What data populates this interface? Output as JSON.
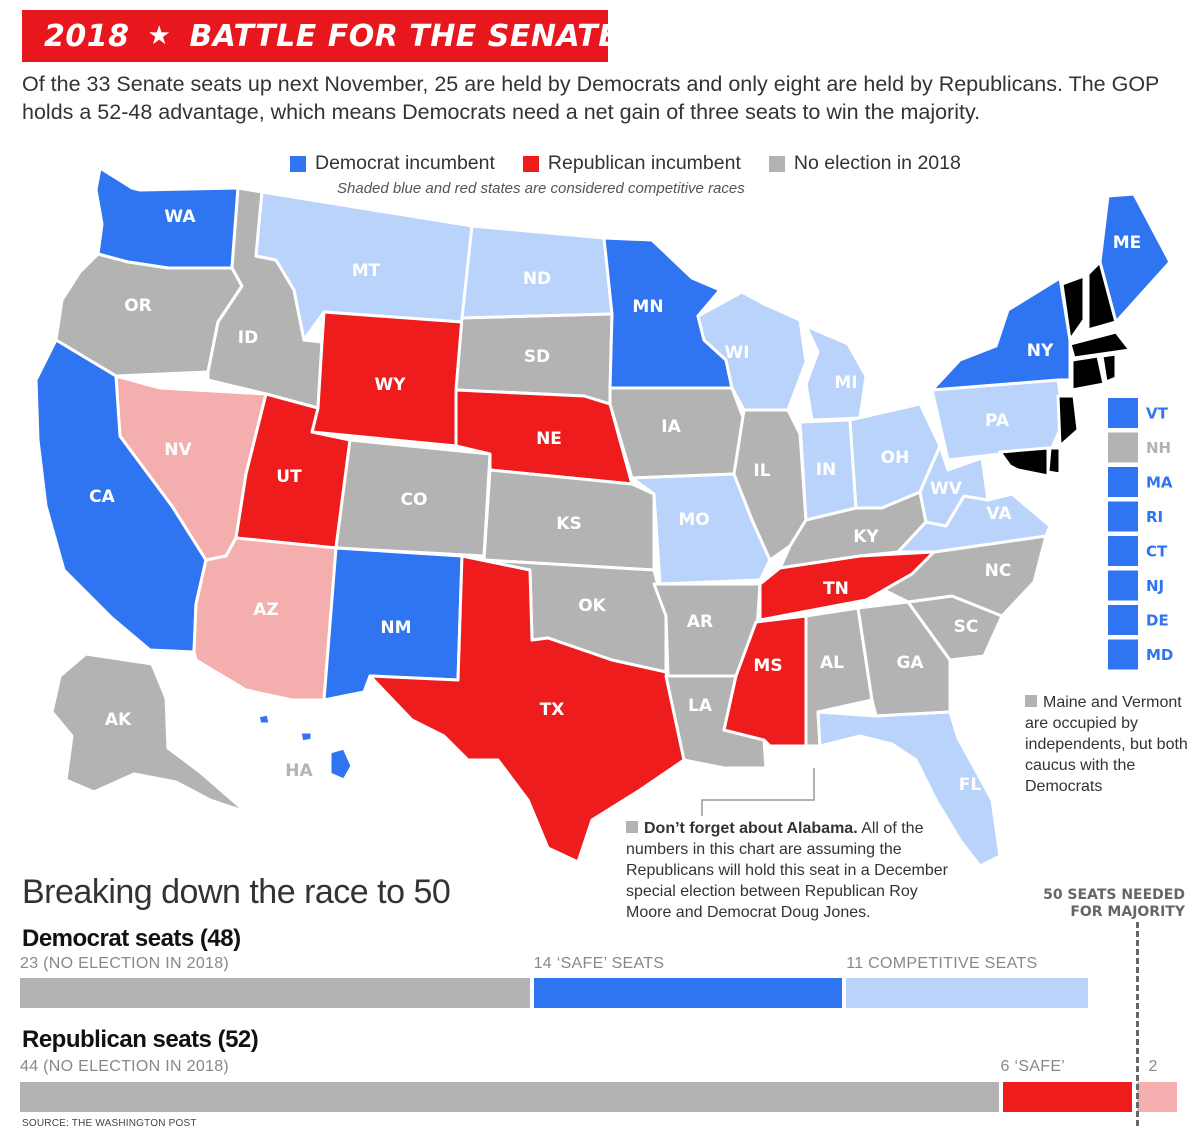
{
  "header": {
    "year": "2018",
    "star": "★",
    "title": "BATTLE FOR THE SENATE",
    "intro": "Of the 33 Senate seats up next November, 25 are held by Democrats and only eight are held by Republicans. The GOP holds a 52-48 advantage, which means Democrats need a net gain of three seats to win the majority."
  },
  "legend": {
    "items": [
      {
        "label": "Democrat incumbent",
        "color": "#2f74f0"
      },
      {
        "label": "Republican incumbent",
        "color": "#ee1c1c"
      },
      {
        "label": "No election in 2018",
        "color": "#b3b3b3"
      }
    ],
    "note": "Shaded blue and red states are considered competitive races"
  },
  "colors": {
    "dem_safe": "#2f74f0",
    "dem_competitive": "#b9d3fb",
    "rep_safe": "#ee1c1c",
    "rep_competitive": "#f5aeae",
    "no_election": "#b3b3b3",
    "border": "#ffffff"
  },
  "states": {
    "WA": {
      "label": "WA",
      "status": "dem_safe"
    },
    "OR": {
      "label": "OR",
      "status": "no_election"
    },
    "CA": {
      "label": "CA",
      "status": "dem_safe"
    },
    "NV": {
      "label": "NV",
      "status": "rep_competitive"
    },
    "ID": {
      "label": "ID",
      "status": "no_election"
    },
    "MT": {
      "label": "MT",
      "status": "dem_competitive"
    },
    "WY": {
      "label": "WY",
      "status": "rep_safe"
    },
    "UT": {
      "label": "UT",
      "status": "rep_safe"
    },
    "AZ": {
      "label": "AZ",
      "status": "rep_competitive"
    },
    "CO": {
      "label": "CO",
      "status": "no_election"
    },
    "NM": {
      "label": "NM",
      "status": "dem_safe"
    },
    "ND": {
      "label": "ND",
      "status": "dem_competitive"
    },
    "SD": {
      "label": "SD",
      "status": "no_election"
    },
    "NE": {
      "label": "NE",
      "status": "rep_safe"
    },
    "KS": {
      "label": "KS",
      "status": "no_election"
    },
    "OK": {
      "label": "OK",
      "status": "no_election"
    },
    "TX": {
      "label": "TX",
      "status": "rep_safe"
    },
    "MN": {
      "label": "MN",
      "status": "dem_safe"
    },
    "IA": {
      "label": "IA",
      "status": "no_election"
    },
    "MO": {
      "label": "MO",
      "status": "dem_competitive"
    },
    "AR": {
      "label": "AR",
      "status": "no_election"
    },
    "LA": {
      "label": "LA",
      "status": "no_election"
    },
    "WI": {
      "label": "WI",
      "status": "dem_competitive"
    },
    "IL": {
      "label": "IL",
      "status": "no_election"
    },
    "MI": {
      "label": "MI",
      "status": "dem_competitive"
    },
    "IN": {
      "label": "IN",
      "status": "dem_competitive"
    },
    "OH": {
      "label": "OH",
      "status": "dem_competitive"
    },
    "KY": {
      "label": "KY",
      "status": "no_election"
    },
    "TN": {
      "label": "TN",
      "status": "rep_safe"
    },
    "MS": {
      "label": "MS",
      "status": "rep_safe"
    },
    "AL": {
      "label": "AL",
      "status": "no_election"
    },
    "GA": {
      "label": "GA",
      "status": "no_election"
    },
    "FL": {
      "label": "FL",
      "status": "dem_competitive"
    },
    "SC": {
      "label": "SC",
      "status": "no_election"
    },
    "NC": {
      "label": "NC",
      "status": "no_election"
    },
    "VA": {
      "label": "VA",
      "status": "dem_competitive"
    },
    "WV": {
      "label": "WV",
      "status": "dem_competitive"
    },
    "PA": {
      "label": "PA",
      "status": "dem_competitive"
    },
    "NY": {
      "label": "NY",
      "status": "dem_safe"
    },
    "ME": {
      "label": "ME",
      "status": "dem_safe"
    },
    "AK": {
      "label": "AK",
      "status": "no_election"
    },
    "HA": {
      "label": "HA",
      "status": "dem_safe"
    }
  },
  "northeast_list": [
    {
      "label": "VT",
      "status": "dem_safe"
    },
    {
      "label": "NH",
      "status": "no_election"
    },
    {
      "label": "MA",
      "status": "dem_safe"
    },
    {
      "label": "RI",
      "status": "dem_safe"
    },
    {
      "label": "CT",
      "status": "dem_safe"
    },
    {
      "label": "NJ",
      "status": "dem_safe"
    },
    {
      "label": "DE",
      "status": "dem_safe"
    },
    {
      "label": "MD",
      "status": "dem_safe"
    }
  ],
  "notes": {
    "maine_vermont": "Maine and Vermont are occupied by independents, but both caucus with the Democrats",
    "alabama_bold": "Don’t forget about Alabama.",
    "alabama_rest": " All of the numbers in this chart are assuming the Republicans will hold this seat in a December special election between Republican Roy Moore and Democrat Doug Jones."
  },
  "race": {
    "title": "Breaking down the race to 50",
    "majority_label_1": "50 SEATS NEEDED",
    "majority_label_2": "FOR MAJORITY",
    "majority_seats": 50,
    "democrat": {
      "heading": "Democrat seats (48)",
      "segments": [
        {
          "label": "23 (NO ELECTION IN 2018)",
          "seats": 23,
          "color": "#b3b3b3"
        },
        {
          "label": "14 ‘SAFE’ SEATS",
          "seats": 14,
          "color": "#2f74f0"
        },
        {
          "label": "11 COMPETITIVE SEATS",
          "seats": 11,
          "color": "#b9d3fb"
        }
      ]
    },
    "republican": {
      "heading": "Republican seats (52)",
      "segments": [
        {
          "label": "44 (NO ELECTION IN 2018)",
          "seats": 44,
          "color": "#b3b3b3"
        },
        {
          "label": "6 ‘SAFE’",
          "seats": 6,
          "color": "#ee1c1c"
        },
        {
          "label": "2",
          "seats": 2,
          "color": "#f5aeae"
        }
      ]
    }
  },
  "source": "SOURCE: THE WASHINGTON POST"
}
